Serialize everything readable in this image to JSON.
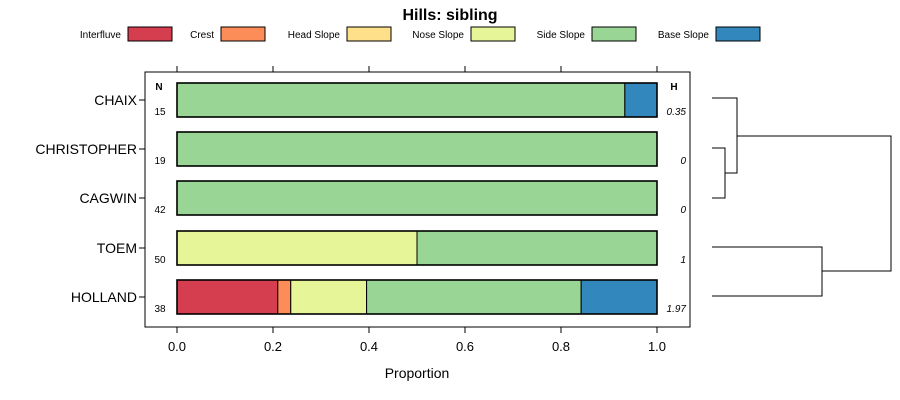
{
  "chart_data": {
    "type": "bar",
    "stacked": true,
    "orientation": "horizontal",
    "title": "Hills: sibling",
    "xlabel": "Proportion",
    "ylabel": "",
    "xlim": [
      0,
      1
    ],
    "x_ticks": [
      "0.0",
      "0.2",
      "0.4",
      "0.6",
      "0.8",
      "1.0"
    ],
    "legend_position": "top",
    "n_header": "N",
    "h_header": "H",
    "series": [
      {
        "name": "Interfluve",
        "color": "#D53E4F"
      },
      {
        "name": "Crest",
        "color": "#FC8D59"
      },
      {
        "name": "Head Slope",
        "color": "#FEE08B"
      },
      {
        "name": "Nose Slope",
        "color": "#E6F598"
      },
      {
        "name": "Side Slope",
        "color": "#99D594"
      },
      {
        "name": "Base Slope",
        "color": "#3288BD"
      }
    ],
    "categories": [
      "CHAIX",
      "CHRISTOPHER",
      "CAGWIN",
      "TOEM",
      "HOLLAND"
    ],
    "n_values": [
      "15",
      "19",
      "42",
      "50",
      "38"
    ],
    "h_values": [
      "0.35",
      "0",
      "0",
      "1",
      "1.97"
    ],
    "values": [
      [
        0,
        0,
        0,
        0,
        0.933,
        0.067
      ],
      [
        0,
        0,
        0,
        0,
        1.0,
        0
      ],
      [
        0,
        0,
        0,
        0,
        1.0,
        0
      ],
      [
        0,
        0,
        0,
        0.5,
        0.5,
        0
      ],
      [
        0.21,
        0.027,
        0,
        0.158,
        0.447,
        0.158
      ]
    ],
    "dendrogram": "CHRISTOPHER and CAGWIN join first, then CHAIX; TOEM and HOLLAND join; the two groups join last"
  }
}
